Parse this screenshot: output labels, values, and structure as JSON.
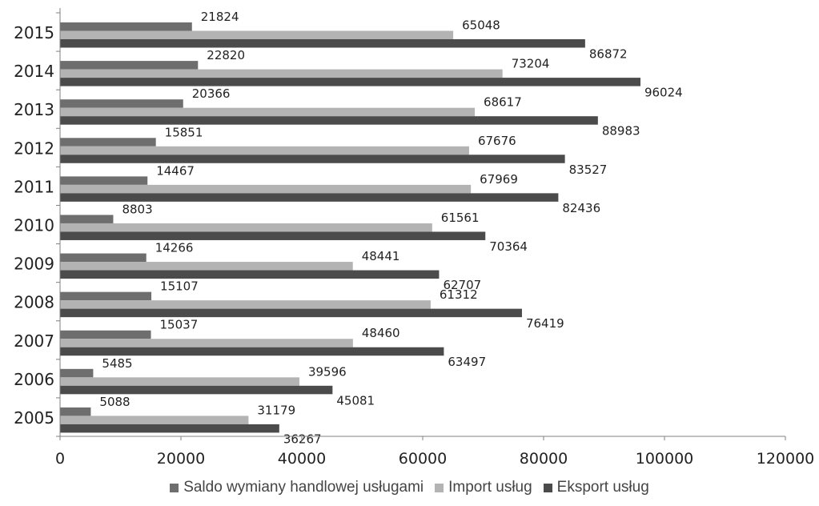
{
  "chart_data": {
    "type": "bar",
    "orientation": "horizontal",
    "categories": [
      "2015",
      "2014",
      "2013",
      "2012",
      "2011",
      "2010",
      "2009",
      "2008",
      "2007",
      "2006",
      "2005"
    ],
    "series": [
      {
        "name": "Saldo wymiany handlowej usługami",
        "color": "#6e6e6e",
        "values": [
          21824,
          22820,
          20366,
          15851,
          14467,
          8803,
          14266,
          15107,
          15037,
          5485,
          5088
        ]
      },
      {
        "name": "Import usług",
        "color": "#b3b3b3",
        "values": [
          65048,
          73204,
          68617,
          67676,
          67969,
          61561,
          48441,
          61312,
          48460,
          39596,
          31179
        ]
      },
      {
        "name": "Eksport usług",
        "color": "#4b4b4b",
        "values": [
          86872,
          96024,
          88983,
          83527,
          82436,
          70364,
          62707,
          76419,
          63497,
          45081,
          36267
        ]
      }
    ],
    "xlim": [
      0,
      120000
    ],
    "xticks": [
      0,
      20000,
      40000,
      60000,
      80000,
      100000,
      120000
    ],
    "title": "",
    "xlabel": "",
    "ylabel": "",
    "grid": false,
    "legend_position": "bottom",
    "data_labels": true
  }
}
